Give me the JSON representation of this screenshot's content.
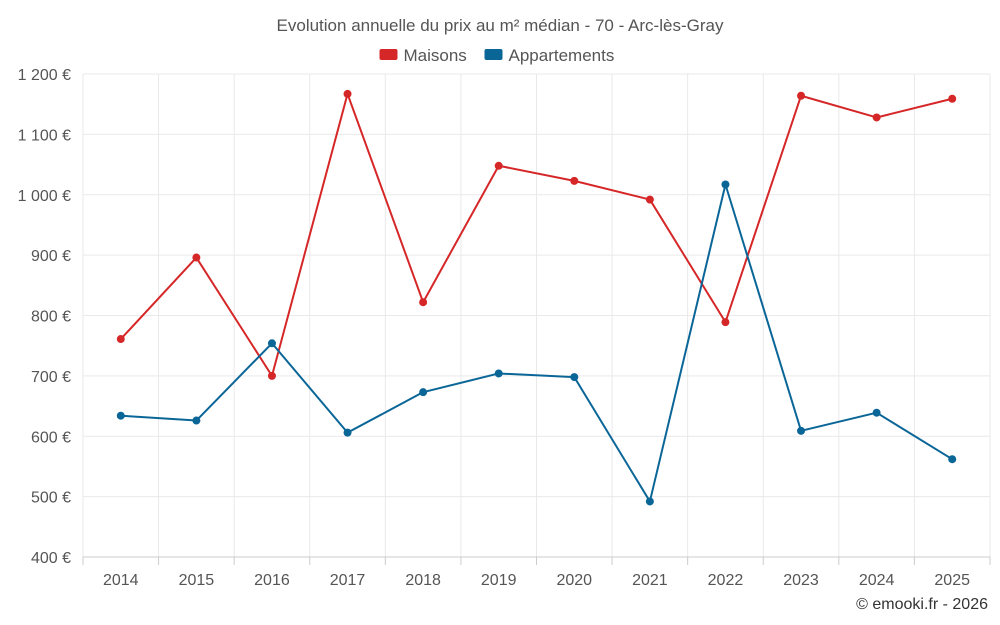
{
  "chart_data": {
    "type": "line",
    "title": "Evolution annuelle du prix au m² médian - 70 - Arc-lès-Gray",
    "categories": [
      "2014",
      "2015",
      "2016",
      "2017",
      "2018",
      "2019",
      "2020",
      "2021",
      "2022",
      "2023",
      "2024",
      "2025"
    ],
    "series": [
      {
        "name": "Maisons",
        "color": "#d62728",
        "values": [
          761,
          896,
          700,
          1167,
          822,
          1048,
          1023,
          992,
          789,
          1164,
          1128,
          1159
        ]
      },
      {
        "name": "Appartements",
        "color": "#0b6698",
        "values": [
          634,
          626,
          754,
          606,
          673,
          704,
          698,
          492,
          1017,
          609,
          639,
          562
        ]
      }
    ],
    "ylim": [
      400,
      1200
    ],
    "yticks": [
      400,
      500,
      600,
      700,
      800,
      900,
      1000,
      1100,
      1200
    ],
    "ytick_labels": [
      "400 €",
      "500 €",
      "600 €",
      "700 €",
      "800 €",
      "900 €",
      "1 000 €",
      "1 100 €",
      "1 200 €"
    ],
    "xlabel": "",
    "ylabel": "",
    "grid": true,
    "legend_position": "top-center"
  },
  "credit": "© emooki.fr - 2026"
}
